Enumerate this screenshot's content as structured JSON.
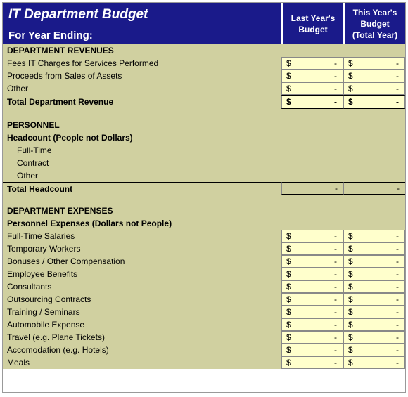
{
  "colors": {
    "header_bg": "#1a1a8a",
    "header_text": "#ffffff",
    "body_bg": "#d0d0a0",
    "money_bg": "#ffffcc",
    "border": "#888888"
  },
  "header": {
    "title": "IT Department Budget",
    "subtitle": "For Year Ending:",
    "col1_line1": "Last Year's",
    "col1_line2": "Budget",
    "col2_line1": "This Year's",
    "col2_line2": "Budget",
    "col2_line3": "(Total Year)"
  },
  "sections": {
    "revenues": {
      "heading": "DEPARTMENT REVENUES",
      "rows": [
        {
          "label": "Fees IT Charges for Services Performed",
          "c1": {
            "cur": "$",
            "val": "-"
          },
          "c2": {
            "cur": "$",
            "val": "-"
          }
        },
        {
          "label": "Proceeds from Sales of Assets",
          "c1": {
            "cur": "$",
            "val": "-"
          },
          "c2": {
            "cur": "$",
            "val": "-"
          }
        },
        {
          "label": "Other",
          "c1": {
            "cur": "$",
            "val": "-"
          },
          "c2": {
            "cur": "$",
            "val": "-"
          }
        }
      ],
      "total": {
        "label": "Total Department Revenue",
        "c1": {
          "cur": "$",
          "val": "-"
        },
        "c2": {
          "cur": "$",
          "val": "-"
        }
      }
    },
    "personnel": {
      "heading": "PERSONNEL",
      "subheading": "Headcount (People not Dollars)",
      "rows": [
        {
          "label": "Full-Time"
        },
        {
          "label": "Contract"
        },
        {
          "label": "Other"
        }
      ],
      "total": {
        "label": "Total Headcount",
        "c1": "-",
        "c2": "-"
      }
    },
    "expenses": {
      "heading": "DEPARTMENT EXPENSES",
      "subheading": "Personnel Expenses (Dollars not People)",
      "rows": [
        {
          "label": "Full-Time Salaries",
          "c1": {
            "cur": "$",
            "val": "-"
          },
          "c2": {
            "cur": "$",
            "val": "-"
          }
        },
        {
          "label": "Temporary Workers",
          "c1": {
            "cur": "$",
            "val": "-"
          },
          "c2": {
            "cur": "$",
            "val": "-"
          }
        },
        {
          "label": "Bonuses / Other Compensation",
          "c1": {
            "cur": "$",
            "val": "-"
          },
          "c2": {
            "cur": "$",
            "val": "-"
          }
        },
        {
          "label": "Employee Benefits",
          "c1": {
            "cur": "$",
            "val": "-"
          },
          "c2": {
            "cur": "$",
            "val": "-"
          }
        },
        {
          "label": "Consultants",
          "c1": {
            "cur": "$",
            "val": "-"
          },
          "c2": {
            "cur": "$",
            "val": "-"
          }
        },
        {
          "label": "Outsourcing Contracts",
          "c1": {
            "cur": "$",
            "val": "-"
          },
          "c2": {
            "cur": "$",
            "val": "-"
          }
        },
        {
          "label": "Training / Seminars",
          "c1": {
            "cur": "$",
            "val": "-"
          },
          "c2": {
            "cur": "$",
            "val": "-"
          }
        },
        {
          "label": "Automobile Expense",
          "c1": {
            "cur": "$",
            "val": "-"
          },
          "c2": {
            "cur": "$",
            "val": "-"
          }
        },
        {
          "label": "Travel (e.g. Plane Tickets)",
          "c1": {
            "cur": "$",
            "val": "-"
          },
          "c2": {
            "cur": "$",
            "val": "-"
          }
        },
        {
          "label": "Accomodation (e.g. Hotels)",
          "c1": {
            "cur": "$",
            "val": "-"
          },
          "c2": {
            "cur": "$",
            "val": "-"
          }
        },
        {
          "label": "Meals",
          "c1": {
            "cur": "$",
            "val": "-"
          },
          "c2": {
            "cur": "$",
            "val": "-"
          }
        }
      ]
    }
  }
}
